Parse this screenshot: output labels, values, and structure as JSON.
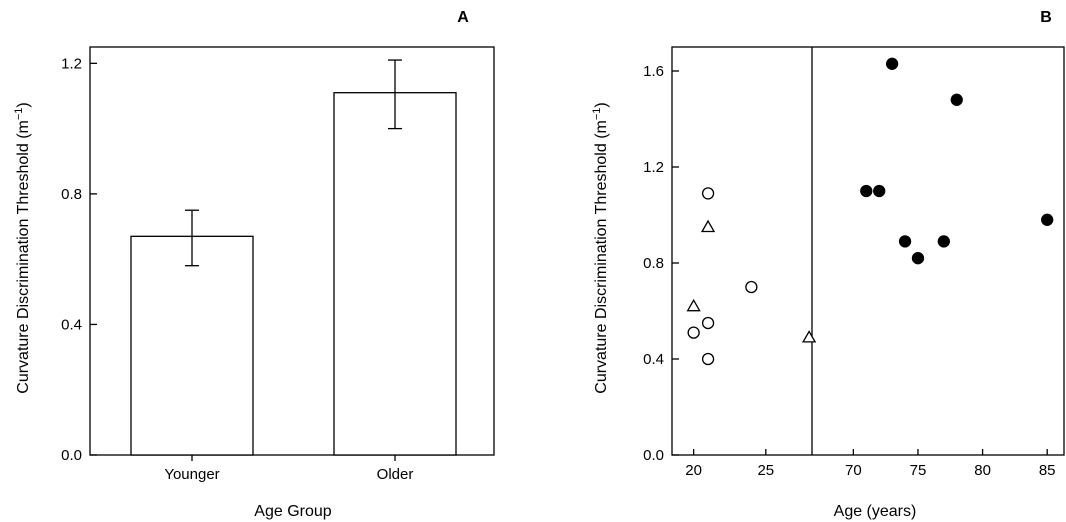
{
  "chart_data": [
    {
      "panel_label": "A",
      "type": "bar",
      "categories": [
        "Younger",
        "Older"
      ],
      "values": [
        0.67,
        1.11
      ],
      "error_upper": [
        0.75,
        1.21
      ],
      "error_lower": [
        0.58,
        1.0
      ],
      "xlabel": "Age Group",
      "ylabel": "Curvature Discrimination Threshold (m",
      "ylabel_sup": "−1",
      "ylabel_end": ")",
      "ylim": [
        0.0,
        1.25
      ],
      "yticks": [
        "0.0",
        "0.4",
        "0.8",
        "1.2"
      ],
      "grid": false
    },
    {
      "panel_label": "B",
      "type": "scatter",
      "xlabel": "Age (years)",
      "ylabel": "Curvature Discrimination Threshold (m",
      "ylabel_sup": "−1",
      "ylabel_end": ")",
      "ylim": [
        0.0,
        1.7
      ],
      "yticks": [
        "0.0",
        "0.4",
        "0.8",
        "1.2",
        "1.6"
      ],
      "x_broken_axis": true,
      "xlim_left": [
        18.5,
        28.2
      ],
      "xlim_right": [
        66.8,
        86.3
      ],
      "xticks_left": [
        "20",
        "25"
      ],
      "xticks_right": [
        "70",
        "75",
        "80",
        "85"
      ],
      "grid": false,
      "series": [
        {
          "marker": "open-circle",
          "points": [
            [
              21,
              1.09
            ],
            [
              24,
              0.7
            ],
            [
              21,
              0.55
            ],
            [
              20,
              0.51
            ],
            [
              21,
              0.4
            ]
          ]
        },
        {
          "marker": "open-triangle",
          "points": [
            [
              21,
              0.95
            ],
            [
              20,
              0.62
            ],
            [
              28,
              0.49
            ]
          ]
        },
        {
          "marker": "filled-circle",
          "points": [
            [
              73,
              1.63
            ],
            [
              78,
              1.48
            ],
            [
              71,
              1.1
            ],
            [
              72,
              1.1
            ],
            [
              74,
              0.89
            ],
            [
              77,
              0.89
            ],
            [
              75,
              0.82
            ],
            [
              85,
              0.98
            ]
          ]
        }
      ]
    }
  ]
}
